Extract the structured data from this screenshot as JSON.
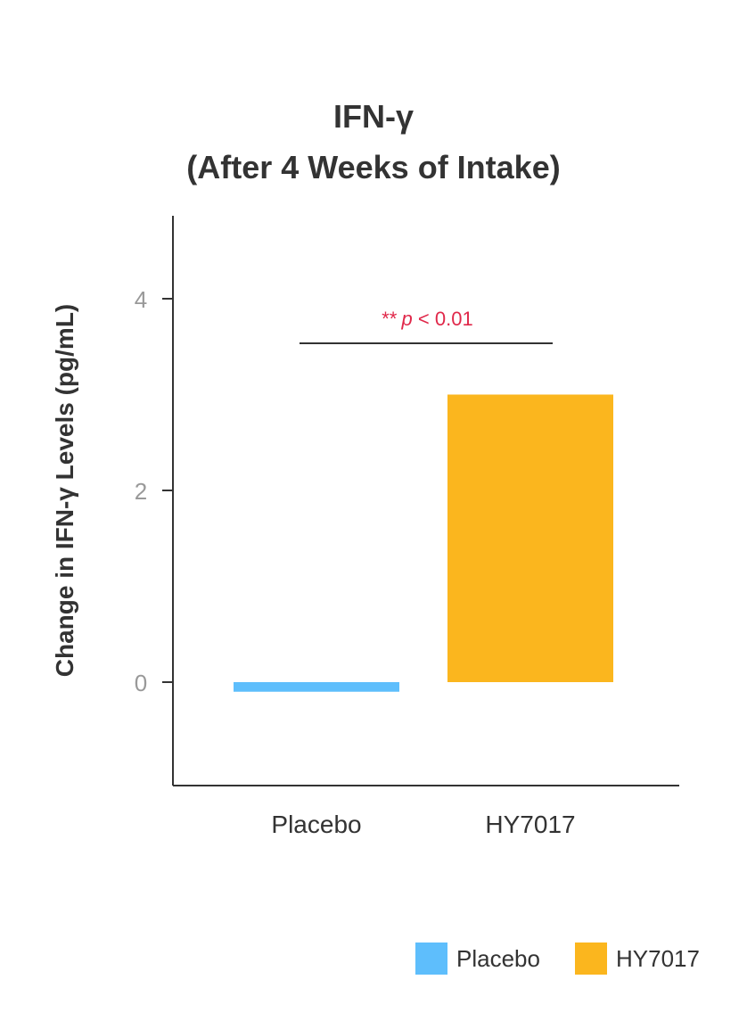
{
  "chart_data": {
    "type": "bar",
    "title": [
      "IFN-γ",
      "(After 4 Weeks of Intake)"
    ],
    "ylabel": "Change in IFN-γ Levels (pg/mL)",
    "xlabel": "",
    "categories": [
      "Placebo",
      "HY7017"
    ],
    "series": [
      {
        "name": "Placebo",
        "values": [
          -0.1,
          null
        ],
        "color": "#5ebefc"
      },
      {
        "name": "HY7017",
        "values": [
          null,
          3.0
        ],
        "color": "#fbb61e"
      }
    ],
    "values": [
      -0.1,
      3.0
    ],
    "ylim": [
      -1.08,
      4.87
    ],
    "yticks": [
      0,
      2,
      4
    ],
    "grid": false,
    "legend": "bottom-right",
    "annotation": {
      "stars": "**",
      "p": "p",
      "text": " < 0.01",
      "color": "#e0284a"
    }
  }
}
